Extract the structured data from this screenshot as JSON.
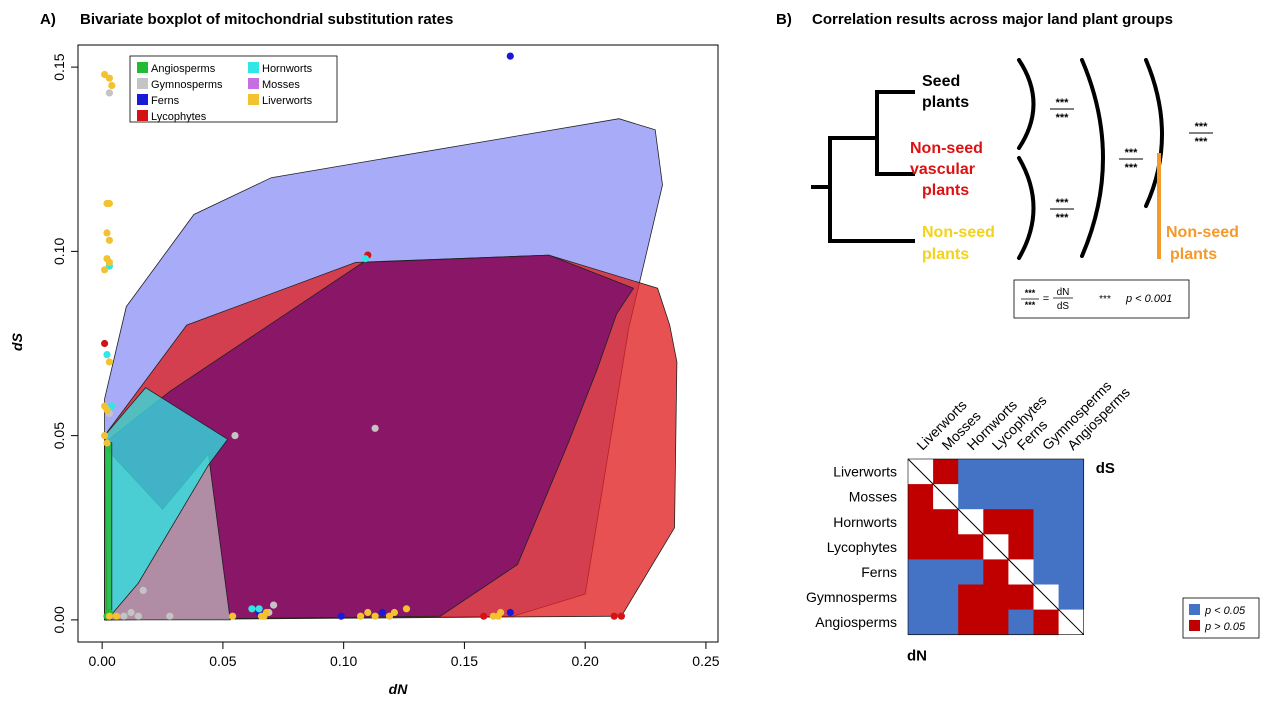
{
  "panel_a": {
    "label": "A)",
    "title": "Bivariate boxplot of mitochondrial substitution rates",
    "chart_data": {
      "type": "scatter",
      "xlabel": "dN",
      "ylabel": "dS",
      "xlim": [
        -0.01,
        0.255
      ],
      "ylim": [
        -0.006,
        0.156
      ],
      "x_ticks": [
        0.0,
        0.05,
        0.1,
        0.15,
        0.2,
        0.25
      ],
      "x_tick_labels": [
        "0.00",
        "0.05",
        "0.10",
        "0.15",
        "0.20",
        "0.25"
      ],
      "y_ticks": [
        0.0,
        0.05,
        0.1,
        0.15
      ],
      "y_tick_labels": [
        "0.00",
        "0.05",
        "0.10",
        "0.15"
      ],
      "grid": false,
      "legend_position": "top-left",
      "draw_order": [
        "Ferns",
        "Lycophytes",
        "Mosses",
        "Gymnosperms",
        "Hornworts",
        "Angiosperms"
      ],
      "series": [
        {
          "name": "Angiosperms",
          "color": "#22bb33",
          "fill": "#22bb33",
          "hull": [
            [
              0.001,
              0.0
            ],
            [
              0.004,
              0.0
            ],
            [
              0.004,
              0.048
            ],
            [
              0.001,
              0.049
            ]
          ],
          "points": [
            [
              0.002,
              0.001
            ],
            [
              0.003,
              0.002
            ]
          ]
        },
        {
          "name": "Gymnosperms",
          "color": "#c4c4c4",
          "fill": "#bdb0b6",
          "hull": [
            [
              0.001,
              0.0
            ],
            [
              0.053,
              0.0
            ],
            [
              0.044,
              0.045
            ],
            [
              0.025,
              0.03
            ],
            [
              0.001,
              0.047
            ]
          ],
          "points": [
            [
              0.003,
              0.143
            ],
            [
              0.055,
              0.05
            ],
            [
              0.113,
              0.052
            ],
            [
              0.012,
              0.002
            ],
            [
              0.017,
              0.008
            ],
            [
              0.028,
              0.001
            ],
            [
              0.069,
              0.002
            ],
            [
              0.071,
              0.004
            ],
            [
              0.009,
              0.001
            ],
            [
              0.015,
              0.001
            ],
            [
              0.003,
              0.056
            ]
          ]
        },
        {
          "name": "Ferns",
          "color": "#1a1ad6",
          "fill": "#8f93f5",
          "hull": [
            [
              0.001,
              0.0
            ],
            [
              0.17,
              0.001
            ],
            [
              0.2,
              0.007
            ],
            [
              0.218,
              0.079
            ],
            [
              0.232,
              0.118
            ],
            [
              0.229,
              0.133
            ],
            [
              0.214,
              0.136
            ],
            [
              0.07,
              0.12
            ],
            [
              0.038,
              0.11
            ],
            [
              0.01,
              0.085
            ],
            [
              0.001,
              0.06
            ]
          ],
          "points": [
            [
              0.169,
              0.153
            ],
            [
              0.099,
              0.001
            ],
            [
              0.116,
              0.002
            ],
            [
              0.169,
              0.002
            ],
            [
              0.065,
              0.002
            ]
          ]
        },
        {
          "name": "Lycophytes",
          "color": "#d41414",
          "fill": "#e02020",
          "hull": [
            [
              0.001,
              0.0
            ],
            [
              0.215,
              0.001
            ],
            [
              0.237,
              0.025
            ],
            [
              0.238,
              0.07
            ],
            [
              0.235,
              0.08
            ],
            [
              0.23,
              0.09
            ],
            [
              0.185,
              0.099
            ],
            [
              0.105,
              0.097
            ],
            [
              0.035,
              0.08
            ],
            [
              0.001,
              0.05
            ]
          ],
          "points": [
            [
              0.11,
              0.099
            ],
            [
              0.001,
              0.075
            ],
            [
              0.158,
              0.001
            ],
            [
              0.212,
              0.001
            ],
            [
              0.215,
              0.001
            ]
          ]
        },
        {
          "name": "Hornworts",
          "color": "#33e6e6",
          "fill": "#2ee0e0",
          "hull": [
            [
              0.002,
              0.0
            ],
            [
              0.015,
              0.01
            ],
            [
              0.044,
              0.042
            ],
            [
              0.052,
              0.049
            ],
            [
              0.018,
              0.063
            ],
            [
              0.001,
              0.05
            ]
          ],
          "points": [
            [
              0.109,
              0.098
            ],
            [
              0.003,
              0.096
            ],
            [
              0.002,
              0.072
            ],
            [
              0.004,
              0.058
            ],
            [
              0.062,
              0.003
            ],
            [
              0.065,
              0.003
            ]
          ]
        },
        {
          "name": "Mosses",
          "color": "#c86fe0",
          "fill": "#7a0e6e",
          "hull": [
            [
              0.001,
              0.0
            ],
            [
              0.14,
              0.001
            ],
            [
              0.172,
              0.015
            ],
            [
              0.193,
              0.048
            ],
            [
              0.205,
              0.068
            ],
            [
              0.213,
              0.083
            ],
            [
              0.22,
              0.09
            ],
            [
              0.185,
              0.099
            ],
            [
              0.108,
              0.097
            ],
            [
              0.028,
              0.062
            ],
            [
              0.001,
              0.048
            ]
          ],
          "points": []
        },
        {
          "name": "Liverworts",
          "color": "#f2c230",
          "fill": "#f2c230",
          "hull": [],
          "points": [
            [
              0.001,
              0.148
            ],
            [
              0.003,
              0.147
            ],
            [
              0.004,
              0.145
            ],
            [
              0.002,
              0.113
            ],
            [
              0.003,
              0.113
            ],
            [
              0.002,
              0.105
            ],
            [
              0.003,
              0.103
            ],
            [
              0.002,
              0.098
            ],
            [
              0.003,
              0.097
            ],
            [
              0.001,
              0.095
            ],
            [
              0.003,
              0.07
            ],
            [
              0.001,
              0.058
            ],
            [
              0.002,
              0.057
            ],
            [
              0.001,
              0.05
            ],
            [
              0.002,
              0.048
            ],
            [
              0.003,
              0.001
            ],
            [
              0.006,
              0.001
            ],
            [
              0.054,
              0.001
            ],
            [
              0.066,
              0.001
            ],
            [
              0.067,
              0.001
            ],
            [
              0.068,
              0.002
            ],
            [
              0.107,
              0.001
            ],
            [
              0.11,
              0.002
            ],
            [
              0.113,
              0.001
            ],
            [
              0.119,
              0.001
            ],
            [
              0.121,
              0.002
            ],
            [
              0.126,
              0.003
            ],
            [
              0.162,
              0.001
            ],
            [
              0.164,
              0.001
            ],
            [
              0.165,
              0.002
            ]
          ]
        }
      ]
    }
  },
  "panel_b": {
    "label": "B)",
    "title": "Correlation results across major land plant groups",
    "tree": {
      "seed_plants": [
        "Seed",
        "plants"
      ],
      "nonseed_vascular": [
        "Non-seed",
        "vascular",
        "plants"
      ],
      "nonseed_plants_left": [
        "Non-seed",
        "plants"
      ],
      "nonseed_plants_right": [
        "Non-seed",
        "plants"
      ],
      "sig_mark": "***",
      "black": "#000000",
      "red": "#dd1111",
      "yellow": "#f2d21c",
      "orange": "#f39a2b"
    },
    "key": {
      "sig_top": "***",
      "sig_bottom": "***",
      "equals": "=",
      "num": "dN",
      "den": "dS",
      "stars": "***",
      "p_text": "p < 0.001"
    },
    "matrix": {
      "row_labels": [
        "Liverworts",
        "Mosses",
        "Hornworts",
        "Lycophytes",
        "Ferns",
        "Gymnosperms",
        "Angiosperms"
      ],
      "col_labels": [
        "Liverworts",
        "Mosses",
        "Hornworts",
        "Lycophytes",
        "Ferns",
        "Gymnosperms",
        "Angiosperms"
      ],
      "upper_label": "dS",
      "lower_label": "dN",
      "cells": [
        [
          "d",
          "n",
          "s",
          "s",
          "s",
          "s",
          "s"
        ],
        [
          "n",
          "d",
          "s",
          "s",
          "s",
          "s",
          "s"
        ],
        [
          "n",
          "n",
          "d",
          "n",
          "n",
          "s",
          "s"
        ],
        [
          "n",
          "n",
          "n",
          "d",
          "n",
          "s",
          "s"
        ],
        [
          "s",
          "s",
          "s",
          "n",
          "d",
          "s",
          "s"
        ],
        [
          "s",
          "s",
          "n",
          "n",
          "n",
          "d",
          "s"
        ],
        [
          "s",
          "s",
          "n",
          "n",
          "s",
          "n",
          "d"
        ]
      ],
      "sig_color": "#4472c4",
      "nonsig_color": "#c00000",
      "legend": [
        {
          "key": "s",
          "label": "p < 0.05"
        },
        {
          "key": "n",
          "label": "p > 0.05"
        }
      ]
    }
  }
}
